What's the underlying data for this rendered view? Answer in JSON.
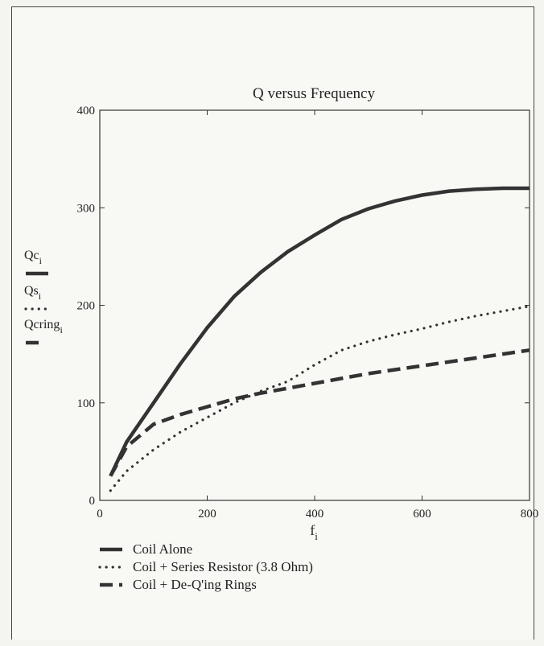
{
  "chart_data": {
    "type": "line",
    "title": "Q  versus Frequency",
    "xlabel": "f",
    "xlabel_sub": "i",
    "xlim": [
      0,
      800
    ],
    "ylim": [
      0,
      400
    ],
    "xticks": [
      "0",
      "200",
      "400",
      "600",
      "800"
    ],
    "yticks": [
      "0",
      "100",
      "200",
      "300",
      "400"
    ],
    "grid": false,
    "side_legend": [
      {
        "label": "Qc",
        "sub": "i",
        "style": "solid"
      },
      {
        "label": "Qs",
        "sub": "i",
        "style": "dotted"
      },
      {
        "label": "Qcring",
        "sub": "i",
        "style": "dashed"
      }
    ],
    "legend": [
      {
        "label": "Coil Alone",
        "style": "solid"
      },
      {
        "label": "Coil + Series Resistor (3.8 Ohm)",
        "style": "dotted"
      },
      {
        "label": "Coil + De-Q'ing Rings",
        "style": "dashed"
      }
    ],
    "series": [
      {
        "name": "Coil Alone",
        "style": "solid",
        "x": [
          20,
          50,
          100,
          150,
          200,
          250,
          300,
          350,
          400,
          450,
          500,
          550,
          600,
          650,
          700,
          750,
          800
        ],
        "y": [
          25,
          60,
          100,
          140,
          177,
          209,
          234,
          255,
          272,
          288,
          299,
          307,
          313,
          317,
          319,
          320,
          320
        ]
      },
      {
        "name": "Coil + Series Resistor (3.8 Ohm)",
        "style": "dotted",
        "x": [
          20,
          50,
          100,
          150,
          200,
          250,
          300,
          350,
          400,
          450,
          500,
          550,
          600,
          650,
          700,
          750,
          800
        ],
        "y": [
          10,
          30,
          52,
          70,
          85,
          100,
          112,
          122,
          139,
          154,
          163,
          170,
          176,
          183,
          189,
          194,
          199
        ]
      },
      {
        "name": "Coil + De-Q'ing Rings",
        "style": "dashed",
        "x": [
          20,
          50,
          100,
          150,
          200,
          250,
          300,
          350,
          400,
          450,
          500,
          550,
          600,
          650,
          700,
          750,
          800
        ],
        "y": [
          25,
          55,
          78,
          88,
          96,
          104,
          110,
          115,
          120,
          125,
          130,
          134,
          138,
          142,
          146,
          150,
          154
        ]
      }
    ]
  }
}
